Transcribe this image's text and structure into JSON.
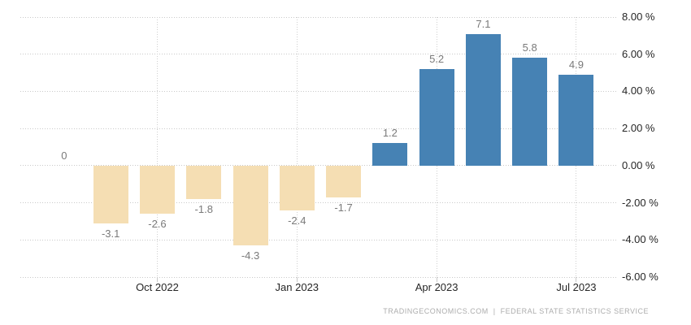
{
  "chart_data": {
    "type": "bar",
    "title": "",
    "values": [
      0,
      -3.1,
      -2.6,
      -1.8,
      -4.3,
      -2.4,
      -1.7,
      1.2,
      5.2,
      7.1,
      5.8,
      4.9
    ],
    "value_labels": [
      "0",
      "-3.1",
      "-2.6",
      "-1.8",
      "-4.3",
      "-2.4",
      "-1.7",
      "1.2",
      "5.2",
      "7.1",
      "5.8",
      "4.9"
    ],
    "x_tick_labels": [
      "Oct 2022",
      "Jan 2023",
      "Apr 2023",
      "Jul 2023"
    ],
    "x_tick_bar_indices": [
      2,
      5,
      8,
      11
    ],
    "y_tick_labels": [
      "8.00 %",
      "6.00 %",
      "4.00 %",
      "2.00 %",
      "0.00 %",
      "-2.00 %",
      "-4.00 %",
      "-6.00 %"
    ],
    "y_tick_values": [
      8,
      6,
      4,
      2,
      0,
      -2,
      -4,
      -6
    ],
    "ylim": [
      -6,
      8
    ],
    "grid": "dotted",
    "legend": "none",
    "colors": {
      "positive_bar": "#4682b4",
      "negative_bar": "#f5deb3",
      "gridline": "#c9c9c9",
      "value_label": "#7a7a7a",
      "axis_label": "#262626"
    }
  },
  "footer": {
    "attribution": "TRADINGECONOMICS.COM  |  FEDERAL STATE STATISTICS SERVICE"
  }
}
